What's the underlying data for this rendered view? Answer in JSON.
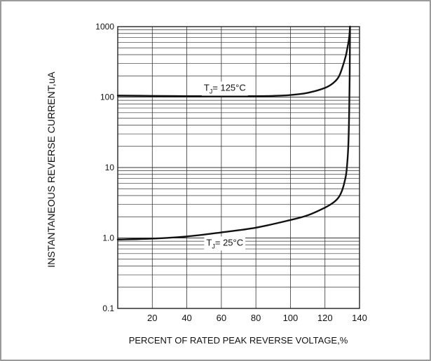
{
  "chart_data": {
    "type": "line",
    "xlabel": "PERCENT OF RATED PEAK REVERSE VOLTAGE,%",
    "ylabel": "INSTANTANEOUS REVERSE CURRENT,uA",
    "y_scale": "log",
    "xlim": [
      0,
      140
    ],
    "ylim": [
      0.1,
      1000
    ],
    "x_ticks": [
      20,
      40,
      60,
      80,
      100,
      120,
      140
    ],
    "x_tick_labels": [
      "20",
      "40",
      "60",
      "80",
      "100",
      "120",
      "140"
    ],
    "y_ticks": [
      0.1,
      1,
      10,
      100,
      1000
    ],
    "y_tick_labels": [
      "0.1",
      "1.0",
      "10",
      "100",
      "1000"
    ],
    "grid": true,
    "series": [
      {
        "label_main": "T",
        "label_sub": "J",
        "label_rest": "= 125°C",
        "points": [
          [
            0,
            105
          ],
          [
            20,
            104
          ],
          [
            40,
            103
          ],
          [
            60,
            103
          ],
          [
            80,
            103
          ],
          [
            90,
            104
          ],
          [
            100,
            107
          ],
          [
            110,
            115
          ],
          [
            120,
            135
          ],
          [
            125,
            160
          ],
          [
            128,
            195
          ],
          [
            130,
            260
          ],
          [
            132,
            380
          ],
          [
            133,
            500
          ],
          [
            134,
            700
          ],
          [
            134.5,
            1000
          ]
        ]
      },
      {
        "label_main": "T",
        "label_sub": "J",
        "label_rest": "= 25°C",
        "points": [
          [
            0,
            0.95
          ],
          [
            20,
            0.98
          ],
          [
            40,
            1.05
          ],
          [
            60,
            1.2
          ],
          [
            80,
            1.4
          ],
          [
            100,
            1.8
          ],
          [
            110,
            2.1
          ],
          [
            120,
            2.7
          ],
          [
            125,
            3.2
          ],
          [
            128,
            3.8
          ],
          [
            130,
            4.8
          ],
          [
            131.5,
            6.5
          ],
          [
            132.5,
            9
          ],
          [
            133.5,
            20
          ],
          [
            134,
            60
          ],
          [
            134.3,
            200
          ],
          [
            134.5,
            1000
          ]
        ]
      }
    ]
  }
}
